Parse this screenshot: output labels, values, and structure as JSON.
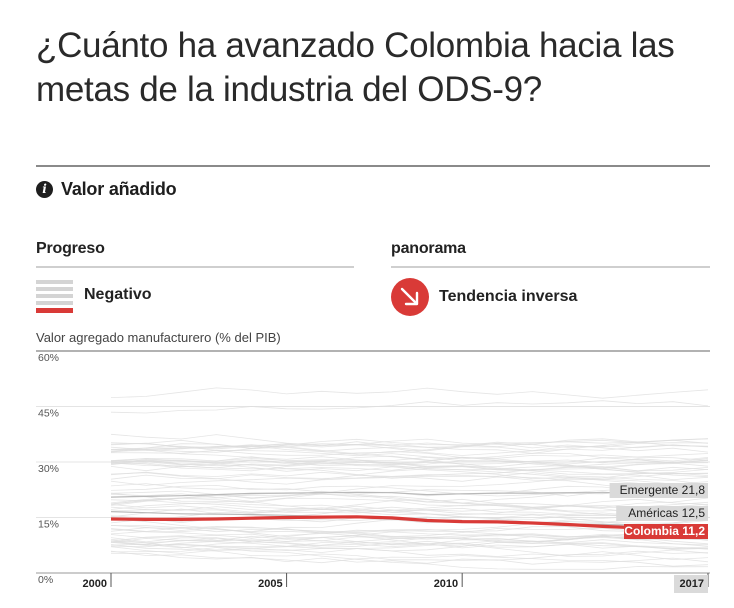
{
  "title": "¿Cuánto ha avanzado Colombia hacia las metas de la industria del ODS-9?",
  "indicator": {
    "icon": "info-icon",
    "label": "Valor añadido"
  },
  "progress": {
    "title": "Progreso",
    "label": "Negativo"
  },
  "panorama": {
    "title": "panorama",
    "label": "Tendencia inversa",
    "icon": "arrow-down-right-icon"
  },
  "colors": {
    "accent": "#d93a37",
    "background_lines": "#d8d8d8",
    "label_box": "#dadada"
  },
  "chart_data": {
    "type": "line",
    "title": "",
    "ylabel": "Valor agregado manufacturero (% del PIB)",
    "ylim": [
      0,
      60
    ],
    "xlim": [
      2000,
      2017
    ],
    "y_ticks": [
      "60%",
      "45%",
      "30%",
      "15%",
      "0%"
    ],
    "y_tick_values": [
      60,
      45,
      30,
      15,
      0
    ],
    "x_ticks": [
      "2000",
      "2005",
      "2010",
      "2017"
    ],
    "x_tick_values": [
      2000,
      2005,
      2010,
      2017
    ],
    "grid": true,
    "x": [
      2000,
      2001,
      2002,
      2003,
      2004,
      2005,
      2006,
      2007,
      2008,
      2009,
      2010,
      2011,
      2012,
      2013,
      2014,
      2015,
      2016,
      2017
    ],
    "series": [
      {
        "name": "Colombia",
        "label": "Colombia 11,2",
        "highlight": true,
        "values": [
          14.6,
          14.5,
          14.5,
          14.6,
          14.8,
          15.0,
          15.1,
          15.2,
          14.9,
          14.2,
          13.9,
          13.8,
          13.5,
          13.1,
          12.6,
          12.2,
          11.8,
          11.2
        ]
      },
      {
        "name": "Américas",
        "label": "Américas 12,5",
        "highlight": false,
        "values": [
          16.6,
          16.3,
          16.0,
          15.9,
          15.8,
          15.6,
          15.3,
          15.0,
          14.6,
          14.0,
          13.9,
          13.7,
          13.5,
          13.3,
          13.1,
          12.9,
          12.7,
          12.5
        ]
      },
      {
        "name": "Emergente",
        "label": "Emergente 21,8",
        "highlight": false,
        "values": [
          20.5,
          20.7,
          20.9,
          21.2,
          21.5,
          21.6,
          21.7,
          21.8,
          21.7,
          21.2,
          21.4,
          21.6,
          21.6,
          21.7,
          21.7,
          21.8,
          21.8,
          21.8
        ]
      }
    ]
  }
}
